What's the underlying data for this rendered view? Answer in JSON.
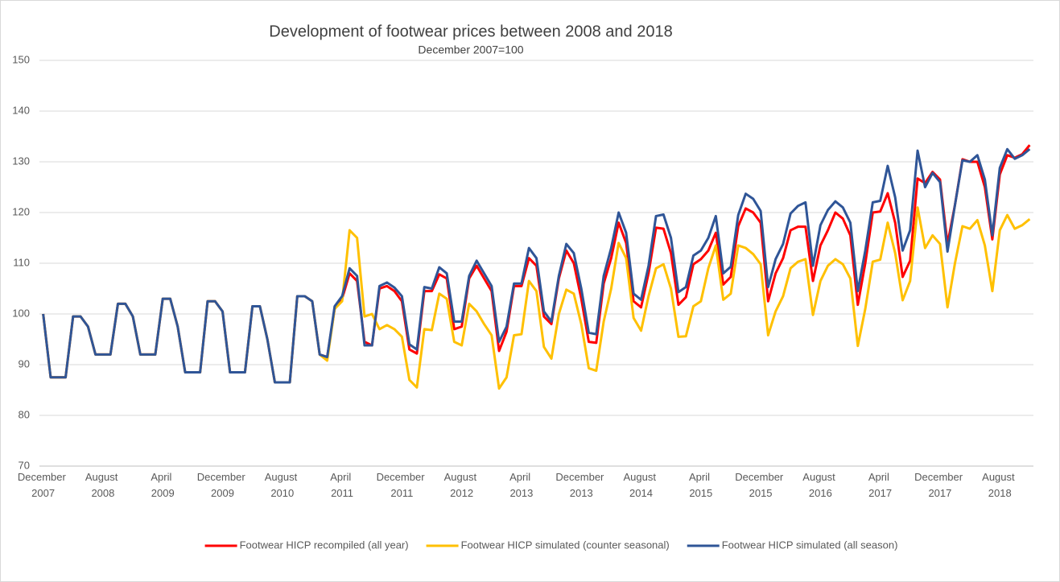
{
  "chart_data": {
    "type": "line",
    "title": "Development of footwear prices between 2008 and 2018",
    "subtitle": "December 2007=100",
    "categories": [
      "December 2007",
      null,
      null,
      null,
      null,
      null,
      null,
      null,
      "August 2008",
      null,
      null,
      null,
      null,
      null,
      null,
      null,
      "April 2009",
      null,
      null,
      null,
      null,
      null,
      null,
      null,
      "December 2009",
      null,
      null,
      null,
      null,
      null,
      null,
      null,
      "August 2010",
      null,
      null,
      null,
      null,
      null,
      null,
      null,
      "April 2011",
      null,
      null,
      null,
      null,
      null,
      null,
      null,
      "December 2011",
      null,
      null,
      null,
      null,
      null,
      null,
      null,
      "August 2012",
      null,
      null,
      null,
      null,
      null,
      null,
      null,
      "April 2013",
      null,
      null,
      null,
      null,
      null,
      null,
      null,
      "December 2013",
      null,
      null,
      null,
      null,
      null,
      null,
      null,
      "August 2014",
      null,
      null,
      null,
      null,
      null,
      null,
      null,
      "April 2015",
      null,
      null,
      null,
      null,
      null,
      null,
      null,
      "December 2015",
      null,
      null,
      null,
      null,
      null,
      null,
      null,
      "August 2016",
      null,
      null,
      null,
      null,
      null,
      null,
      null,
      "April 2017",
      null,
      null,
      null,
      null,
      null,
      null,
      null,
      "December 2017",
      null,
      null,
      null,
      null,
      null,
      null,
      null,
      "August 2018",
      null,
      null,
      null,
      null
    ],
    "series": [
      {
        "name": "Footwear HICP recompiled (all year)",
        "color": "#ff0000",
        "values": [
          100,
          87.5,
          87.5,
          87.5,
          99.5,
          99.5,
          97.5,
          92,
          92,
          92,
          102,
          102,
          99.5,
          92,
          92,
          92,
          103,
          103,
          97.5,
          88.5,
          88.5,
          88.5,
          102.5,
          102.5,
          100.5,
          88.5,
          88.5,
          88.5,
          101.5,
          101.5,
          95,
          86.5,
          86.5,
          86.5,
          103.5,
          103.5,
          102.5,
          92,
          91.5,
          101,
          103,
          108,
          106.5,
          94.5,
          93.8,
          105,
          105.5,
          104.5,
          102.5,
          93,
          92.2,
          104.5,
          104.5,
          107.8,
          107,
          97,
          97.5,
          107,
          109.5,
          107,
          104.5,
          92.7,
          96.5,
          105.5,
          105.5,
          111,
          109.5,
          99.5,
          98,
          107,
          112.5,
          110,
          103,
          94.5,
          94.3,
          106,
          111,
          118,
          114,
          102.5,
          101.3,
          108,
          117,
          116.8,
          112,
          101.8,
          103.3,
          109.8,
          110.8,
          112.5,
          116,
          105.8,
          107.3,
          117.3,
          120.8,
          120,
          118,
          102.5,
          108,
          111,
          116.5,
          117.2,
          117.2,
          106.5,
          113.5,
          116.5,
          120,
          118.8,
          115.5,
          101.8,
          110,
          120,
          120.2,
          123.8,
          118,
          107.3,
          110.5,
          126.7,
          125.8,
          128,
          126.5,
          113.8,
          121.5,
          130.5,
          130,
          130,
          125,
          114.7,
          127.5,
          131.3,
          130.8,
          131.5,
          133.3
        ]
      },
      {
        "name": "Footwear HICP simulated (counter seasonal)",
        "color": "#ffc000",
        "values": [
          100,
          87.5,
          87.5,
          87.5,
          99.5,
          99.5,
          97.5,
          92,
          92,
          92,
          102,
          102,
          99.5,
          92,
          92,
          92,
          103,
          103,
          97.5,
          88.5,
          88.5,
          88.5,
          102.5,
          102.5,
          100.5,
          88.5,
          88.5,
          88.5,
          101.5,
          101.5,
          95,
          86.5,
          86.5,
          86.5,
          103.5,
          103.5,
          102.5,
          92,
          90.8,
          101,
          102.5,
          116.5,
          115,
          99.5,
          100,
          97,
          97.8,
          97,
          95.5,
          87,
          85.5,
          97,
          96.8,
          104,
          103,
          94.5,
          93.8,
          102,
          100.5,
          98,
          95.8,
          85.3,
          87.5,
          95.8,
          96,
          106.5,
          104.5,
          93.5,
          91.2,
          100,
          104.8,
          104,
          98,
          89.3,
          88.8,
          98.5,
          105,
          114,
          111,
          99.2,
          96.7,
          103.5,
          109,
          109.8,
          105,
          95.5,
          95.6,
          101.5,
          102.5,
          109,
          113.5,
          102.8,
          104,
          113.5,
          113,
          111.8,
          109.8,
          95.8,
          100.5,
          103.5,
          109,
          110.3,
          110.8,
          99.8,
          106.5,
          109.5,
          110.8,
          109.8,
          107,
          93.7,
          101,
          110.3,
          110.7,
          118,
          112,
          102.7,
          106.5,
          121,
          113,
          115.5,
          113.8,
          101.3,
          110,
          117.3,
          116.8,
          118.5,
          113.5,
          104.5,
          116.5,
          119.5,
          116.8,
          117.5,
          118.7
        ]
      },
      {
        "name": "Footwear HICP simulated (all season)",
        "color": "#2f5597",
        "values": [
          100,
          87.5,
          87.5,
          87.5,
          99.5,
          99.5,
          97.5,
          92,
          92,
          92,
          102,
          102,
          99.5,
          92,
          92,
          92,
          103,
          103,
          97.5,
          88.5,
          88.5,
          88.5,
          102.5,
          102.5,
          100.5,
          88.5,
          88.5,
          88.5,
          101.5,
          101.5,
          95,
          86.5,
          86.5,
          86.5,
          103.5,
          103.5,
          102.5,
          92,
          91.5,
          101.5,
          103.5,
          109,
          107.5,
          93.8,
          93.8,
          105.5,
          106.2,
          105.2,
          103.5,
          94,
          93,
          105.3,
          105,
          109.2,
          108,
          98.5,
          98.5,
          107.5,
          110.5,
          108,
          105.5,
          94.5,
          97.5,
          106,
          106,
          113,
          111,
          100.5,
          98.5,
          107.5,
          113.8,
          112,
          105,
          96.3,
          96,
          107.5,
          113,
          120,
          116,
          104,
          102.8,
          109.5,
          119.3,
          119.6,
          115,
          104.3,
          105.3,
          111.5,
          112.5,
          115,
          119.3,
          108,
          109.3,
          119.5,
          123.7,
          122.7,
          120.3,
          105.3,
          110.8,
          113.8,
          119.8,
          121.3,
          122,
          109.5,
          117.5,
          120.5,
          122.2,
          121,
          118,
          104.5,
          112.5,
          122,
          122.3,
          129.2,
          123,
          112.5,
          116.5,
          132.2,
          125,
          127.8,
          126,
          112.3,
          121.5,
          130.3,
          130,
          131.3,
          126.5,
          115.5,
          128.8,
          132.5,
          130.6,
          131.3,
          132.5
        ]
      }
    ],
    "ylim": [
      70,
      150
    ],
    "yticks": [
      70,
      80,
      90,
      100,
      110,
      120,
      130,
      140,
      150
    ],
    "grid": true,
    "legend": "bottom"
  }
}
